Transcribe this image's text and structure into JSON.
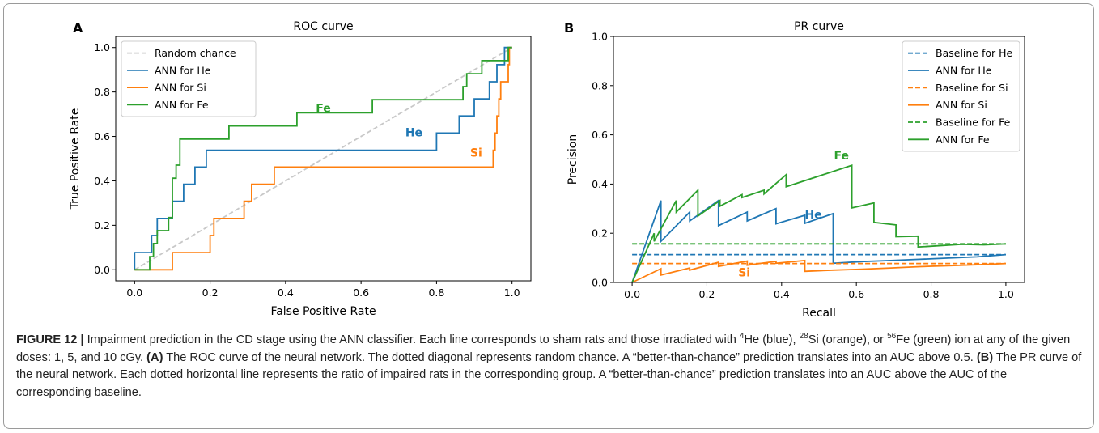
{
  "colors": {
    "he": "#1f77b4",
    "si": "#ff7f0e",
    "fe": "#2ca02c",
    "random": "#c8c8c8"
  },
  "chart_data": [
    {
      "panel": "A",
      "type": "line",
      "title": "ROC curve",
      "xlabel": "False Positive Rate",
      "ylabel": "True Positive Rate",
      "xlim": [
        -0.05,
        1.05
      ],
      "ylim": [
        -0.05,
        1.05
      ],
      "xticks": [
        "0.0",
        "0.2",
        "0.4",
        "0.6",
        "0.8",
        "1.0"
      ],
      "yticks": [
        "0.0",
        "0.2",
        "0.4",
        "0.6",
        "0.8",
        "1.0"
      ],
      "legend": {
        "position": "top-left",
        "entries": [
          "Random chance",
          "ANN for He",
          "ANN for Si",
          "ANN for Fe"
        ]
      },
      "annotations": [
        "He",
        "Si",
        "Fe"
      ],
      "series": [
        {
          "name": "Random chance",
          "color": "random",
          "dashed": true,
          "points": [
            [
              0,
              0
            ],
            [
              1,
              1
            ]
          ]
        },
        {
          "name": "ANN for He",
          "color": "he",
          "label": "He",
          "points": [
            [
              0,
              0
            ],
            [
              0,
              0.077
            ],
            [
              0.045,
              0.077
            ],
            [
              0.045,
              0.154
            ],
            [
              0.06,
              0.154
            ],
            [
              0.06,
              0.231
            ],
            [
              0.1,
              0.231
            ],
            [
              0.1,
              0.308
            ],
            [
              0.13,
              0.308
            ],
            [
              0.13,
              0.385
            ],
            [
              0.16,
              0.385
            ],
            [
              0.16,
              0.462
            ],
            [
              0.19,
              0.462
            ],
            [
              0.19,
              0.538
            ],
            [
              0.8,
              0.538
            ],
            [
              0.8,
              0.615
            ],
            [
              0.86,
              0.615
            ],
            [
              0.86,
              0.692
            ],
            [
              0.9,
              0.692
            ],
            [
              0.9,
              0.769
            ],
            [
              0.94,
              0.769
            ],
            [
              0.94,
              0.846
            ],
            [
              0.96,
              0.846
            ],
            [
              0.96,
              0.923
            ],
            [
              0.98,
              0.923
            ],
            [
              0.98,
              1.0
            ],
            [
              1.0,
              1.0
            ]
          ]
        },
        {
          "name": "ANN for Si",
          "color": "si",
          "label": "Si",
          "points": [
            [
              0,
              0
            ],
            [
              0.1,
              0
            ],
            [
              0.1,
              0.077
            ],
            [
              0.2,
              0.077
            ],
            [
              0.2,
              0.154
            ],
            [
              0.21,
              0.154
            ],
            [
              0.21,
              0.231
            ],
            [
              0.29,
              0.231
            ],
            [
              0.29,
              0.308
            ],
            [
              0.31,
              0.308
            ],
            [
              0.31,
              0.385
            ],
            [
              0.37,
              0.385
            ],
            [
              0.37,
              0.462
            ],
            [
              0.95,
              0.462
            ],
            [
              0.95,
              0.538
            ],
            [
              0.955,
              0.538
            ],
            [
              0.955,
              0.615
            ],
            [
              0.96,
              0.615
            ],
            [
              0.96,
              0.692
            ],
            [
              0.965,
              0.692
            ],
            [
              0.965,
              0.769
            ],
            [
              0.97,
              0.769
            ],
            [
              0.97,
              0.846
            ],
            [
              0.99,
              0.846
            ],
            [
              0.99,
              0.923
            ],
            [
              0.993,
              0.923
            ],
            [
              0.993,
              1.0
            ],
            [
              1.0,
              1.0
            ]
          ]
        },
        {
          "name": "ANN for Fe",
          "color": "fe",
          "label": "Fe",
          "points": [
            [
              0,
              0
            ],
            [
              0.04,
              0
            ],
            [
              0.04,
              0.059
            ],
            [
              0.05,
              0.059
            ],
            [
              0.05,
              0.118
            ],
            [
              0.06,
              0.118
            ],
            [
              0.06,
              0.176
            ],
            [
              0.09,
              0.176
            ],
            [
              0.09,
              0.235
            ],
            [
              0.1,
              0.235
            ],
            [
              0.1,
              0.294
            ],
            [
              0.1,
              0.353
            ],
            [
              0.1,
              0.412
            ],
            [
              0.11,
              0.412
            ],
            [
              0.11,
              0.471
            ],
            [
              0.12,
              0.471
            ],
            [
              0.12,
              0.529
            ],
            [
              0.12,
              0.588
            ],
            [
              0.19,
              0.588
            ],
            [
              0.19,
              0.588
            ],
            [
              0.25,
              0.588
            ],
            [
              0.25,
              0.647
            ],
            [
              0.43,
              0.647
            ],
            [
              0.43,
              0.706
            ],
            [
              0.63,
              0.706
            ],
            [
              0.63,
              0.765
            ],
            [
              0.87,
              0.765
            ],
            [
              0.87,
              0.824
            ],
            [
              0.88,
              0.824
            ],
            [
              0.88,
              0.882
            ],
            [
              0.92,
              0.882
            ],
            [
              0.92,
              0.941
            ],
            [
              0.99,
              0.941
            ],
            [
              0.99,
              1.0
            ],
            [
              1.0,
              1.0
            ]
          ]
        }
      ]
    },
    {
      "panel": "B",
      "type": "line",
      "title": "PR curve",
      "xlabel": "Recall",
      "ylabel": "Precision",
      "xlim": [
        -0.05,
        1.05
      ],
      "ylim": [
        0,
        1.0
      ],
      "xticks": [
        "0.0",
        "0.2",
        "0.4",
        "0.6",
        "0.8",
        "1.0"
      ],
      "yticks": [
        "0.0",
        "0.2",
        "0.4",
        "0.6",
        "0.8",
        "1.0"
      ],
      "legend": {
        "position": "top-right",
        "entries": [
          "Baseline for He",
          "ANN for He",
          "Baseline for Si",
          "ANN for Si",
          "Baseline for Fe",
          "ANN for Fe"
        ]
      },
      "annotations": [
        "He",
        "Si",
        "Fe"
      ],
      "series": [
        {
          "name": "Baseline for He",
          "color": "he",
          "dashed": true,
          "points": [
            [
              0,
              0.113
            ],
            [
              1,
              0.113
            ]
          ]
        },
        {
          "name": "ANN for He",
          "color": "he",
          "label": "He",
          "points": [
            [
              0,
              0
            ],
            [
              0.077,
              0.333
            ],
            [
              0.077,
              0.167
            ],
            [
              0.154,
              0.286
            ],
            [
              0.154,
              0.25
            ],
            [
              0.231,
              0.333
            ],
            [
              0.231,
              0.231
            ],
            [
              0.308,
              0.286
            ],
            [
              0.308,
              0.25
            ],
            [
              0.385,
              0.3
            ],
            [
              0.385,
              0.238
            ],
            [
              0.462,
              0.273
            ],
            [
              0.462,
              0.24
            ],
            [
              0.538,
              0.28
            ],
            [
              0.538,
              0.078
            ],
            [
              0.615,
              0.085
            ],
            [
              0.692,
              0.089
            ],
            [
              0.769,
              0.094
            ],
            [
              0.846,
              0.099
            ],
            [
              0.923,
              0.104
            ],
            [
              1.0,
              0.113
            ]
          ]
        },
        {
          "name": "Baseline for Si",
          "color": "si",
          "dashed": true,
          "points": [
            [
              0,
              0.077
            ],
            [
              1,
              0.077
            ]
          ]
        },
        {
          "name": "ANN for Si",
          "color": "si",
          "label": "Si",
          "points": [
            [
              0,
              0
            ],
            [
              0.077,
              0.056
            ],
            [
              0.077,
              0.03
            ],
            [
              0.154,
              0.059
            ],
            [
              0.154,
              0.05
            ],
            [
              0.231,
              0.082
            ],
            [
              0.231,
              0.065
            ],
            [
              0.308,
              0.087
            ],
            [
              0.308,
              0.07
            ],
            [
              0.385,
              0.086
            ],
            [
              0.385,
              0.078
            ],
            [
              0.462,
              0.089
            ],
            [
              0.462,
              0.045
            ],
            [
              0.538,
              0.05
            ],
            [
              0.615,
              0.054
            ],
            [
              0.692,
              0.059
            ],
            [
              0.769,
              0.064
            ],
            [
              0.846,
              0.068
            ],
            [
              0.923,
              0.072
            ],
            [
              1.0,
              0.077
            ]
          ]
        },
        {
          "name": "Baseline for Fe",
          "color": "fe",
          "dashed": true,
          "points": [
            [
              0,
              0.157
            ],
            [
              1,
              0.157
            ]
          ]
        },
        {
          "name": "ANN for Fe",
          "color": "fe",
          "label": "Fe",
          "points": [
            [
              0,
              0
            ],
            [
              0.059,
              0.2
            ],
            [
              0.059,
              0.167
            ],
            [
              0.118,
              0.333
            ],
            [
              0.118,
              0.286
            ],
            [
              0.176,
              0.375
            ],
            [
              0.176,
              0.27
            ],
            [
              0.235,
              0.333
            ],
            [
              0.235,
              0.31
            ],
            [
              0.294,
              0.357
            ],
            [
              0.294,
              0.345
            ],
            [
              0.353,
              0.375
            ],
            [
              0.353,
              0.36
            ],
            [
              0.412,
              0.438
            ],
            [
              0.412,
              0.389
            ],
            [
              0.588,
              0.476
            ],
            [
              0.588,
              0.303
            ],
            [
              0.647,
              0.323
            ],
            [
              0.647,
              0.244
            ],
            [
              0.706,
              0.234
            ],
            [
              0.706,
              0.186
            ],
            [
              0.765,
              0.188
            ],
            [
              0.765,
              0.144
            ],
            [
              0.882,
              0.155
            ],
            [
              0.941,
              0.153
            ],
            [
              1.0,
              0.157
            ]
          ]
        }
      ]
    }
  ],
  "caption": {
    "label": "FIGURE 12 |",
    "sentence1_a": "Impairment prediction in the CD stage using the ANN classifier. Each line corresponds to sham rats and those irradiated with ",
    "sup_he": "4",
    "he": "He (blue), ",
    "sup_si": "28",
    "si": "Si (orange), or ",
    "sup_fe": "56",
    "fe": "Fe (green) ion at any of the given doses: 1, 5, and 10 cGy. ",
    "label_a": "(A)",
    "text_a": " The ROC curve of the neural network. The dotted diagonal represents random chance. A “better-than-chance” prediction translates into an AUC above 0.5. ",
    "label_b": "(B)",
    "text_b": " The PR curve of the neural network. Each dotted horizontal line represents the ratio of impaired rats in the corresponding group. A “better-than-chance” prediction translates into an AUC above the AUC of the corresponding baseline."
  }
}
